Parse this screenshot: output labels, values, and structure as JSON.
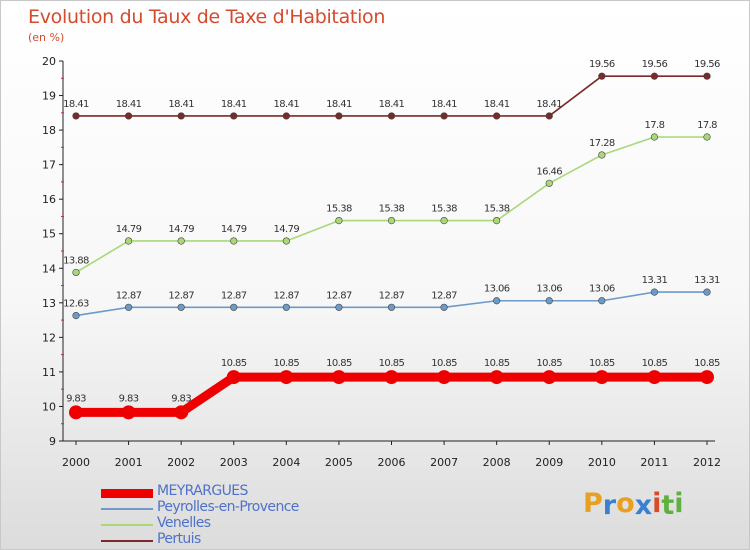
{
  "header": {
    "title": "Evolution du Taux de Taxe d'Habitation",
    "subtitle": "(en %)"
  },
  "chart_data": {
    "type": "line",
    "title": "Evolution du Taux de Taxe d'Habitation",
    "ylabel": "(en %)",
    "xlabel": "",
    "x": [
      "2000",
      "2001",
      "2002",
      "2003",
      "2004",
      "2005",
      "2006",
      "2007",
      "2008",
      "2009",
      "2010",
      "2011",
      "2012"
    ],
    "ylim": [
      9,
      20
    ],
    "yticks": [
      "9",
      "10",
      "11",
      "12",
      "13",
      "14",
      "15",
      "16",
      "17",
      "18",
      "19",
      "20"
    ],
    "grid": false,
    "legend": "bottom-left",
    "series": [
      {
        "name": "MEYRARGUES",
        "color": "#ee0000",
        "values": [
          9.83,
          9.83,
          9.83,
          10.85,
          10.85,
          10.85,
          10.85,
          10.85,
          10.85,
          10.85,
          10.85,
          10.85,
          10.85
        ],
        "labels": [
          "9.83",
          "9.83",
          "9.83",
          "10.85",
          "10.85",
          "10.85",
          "10.85",
          "10.85",
          "10.85",
          "10.85",
          "10.85",
          "10.85",
          "10.85"
        ]
      },
      {
        "name": "Peyrolles-en-Provence",
        "color": "#6d9ac8",
        "values": [
          12.63,
          12.87,
          12.87,
          12.87,
          12.87,
          12.87,
          12.87,
          12.87,
          13.06,
          13.06,
          13.06,
          13.31,
          13.31
        ],
        "labels": [
          "12.63",
          "12.87",
          "12.87",
          "12.87",
          "12.87",
          "12.87",
          "12.87",
          "12.87",
          "13.06",
          "13.06",
          "13.06",
          "13.31",
          "13.31"
        ]
      },
      {
        "name": "Venelles",
        "color": "#a8d878",
        "values": [
          13.88,
          14.79,
          14.79,
          14.79,
          14.79,
          15.38,
          15.38,
          15.38,
          15.38,
          16.46,
          17.28,
          17.8,
          17.8
        ],
        "labels": [
          "13.88",
          "14.79",
          "14.79",
          "14.79",
          "14.79",
          "15.38",
          "15.38",
          "15.38",
          "15.38",
          "16.46",
          "17.28",
          "17.8",
          "17.8"
        ]
      },
      {
        "name": "Pertuis",
        "color": "#7a2a2a",
        "values": [
          18.41,
          18.41,
          18.41,
          18.41,
          18.41,
          18.41,
          18.41,
          18.41,
          18.41,
          18.41,
          19.56,
          19.56,
          19.56
        ],
        "labels": [
          "18.41",
          "18.41",
          "18.41",
          "18.41",
          "18.41",
          "18.41",
          "18.41",
          "18.41",
          "18.41",
          "18.41",
          "19.56",
          "19.56",
          "19.56"
        ]
      }
    ]
  },
  "logo": {
    "letters": [
      "P",
      "r",
      "o",
      "x",
      "i",
      "t",
      "i"
    ],
    "colors": [
      "#e8a020",
      "#3a80d0",
      "#e8a020",
      "#3a80d0",
      "#d84a2a",
      "#60b040",
      "#60b040"
    ]
  }
}
